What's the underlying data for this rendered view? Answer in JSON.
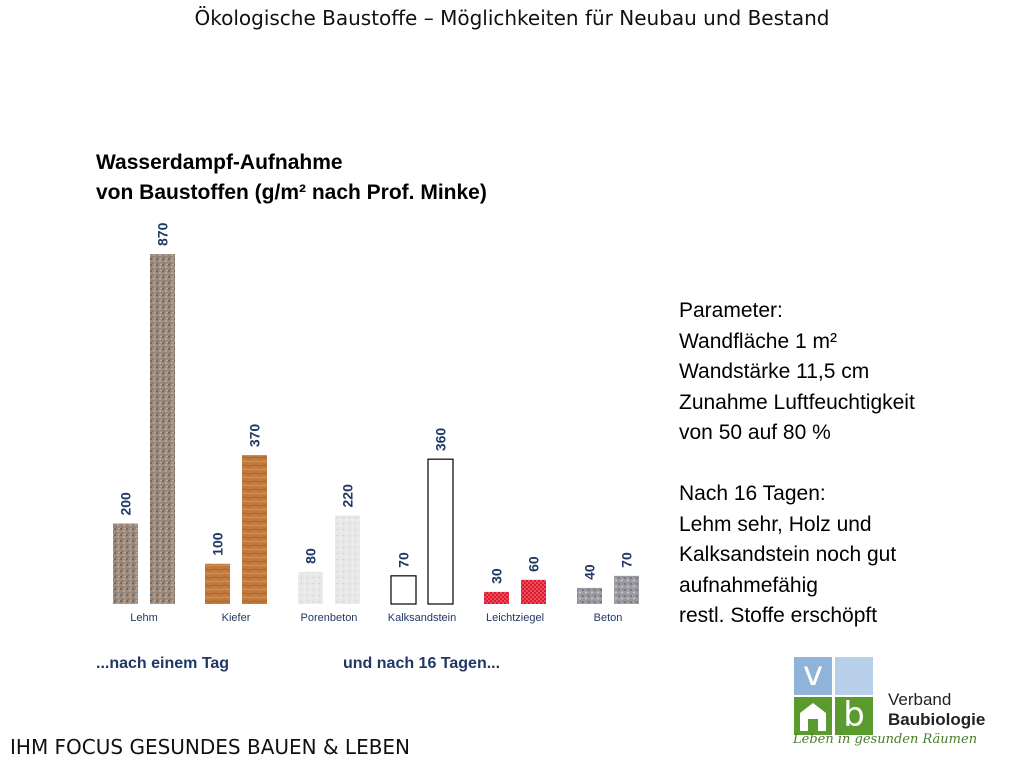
{
  "slide_title": "Ökologische Baustoffe – Möglichkeiten für Neubau und Bestand",
  "chart_data": {
    "type": "bar",
    "title_lines": [
      "Wasserdampf-Aufnahme",
      "von Baustoffen (g/m² nach Prof. Minke)"
    ],
    "categories": [
      "Lehm",
      "Kiefer",
      "Porenbeton",
      "Kalksandstein",
      "Leichtziegel",
      "Beton"
    ],
    "series": [
      {
        "values": [
          200,
          100,
          80,
          70,
          30,
          40
        ]
      },
      {
        "values": [
          870,
          370,
          220,
          360,
          60,
          70
        ]
      }
    ],
    "ylim": [
      0,
      870
    ],
    "grid": false
  },
  "captions": {
    "left": "...nach einem Tag",
    "right": "und nach 16 Tagen..."
  },
  "params_lines": [
    "Parameter:",
    "Wandfläche 1 m²",
    "Wandstärke 11,5 cm",
    "Zunahme Luftfeuchtigkeit",
    "von 50 auf 80 %",
    "",
    "Nach 16 Tagen:",
    "Lehm sehr, Holz und",
    "Kalksandstein noch gut",
    "aufnahmefähig",
    "restl. Stoffe erschöpft"
  ],
  "footer": "IHM FOCUS GESUNDES BAUEN & LEBEN",
  "logo": {
    "letter_v": "v",
    "letter_b": "b",
    "name_line1": "Verband",
    "name_line2": "Baubiologie",
    "tagline": "Leben in gesunden Räumen",
    "colors": {
      "blue": "#8fb3d9",
      "green": "#5a9b2f",
      "gray": "#9a9a9a"
    }
  },
  "colors": {
    "value_label": "#1f3864",
    "category_label": "#1f3864",
    "Lehm": "#9c8a7c",
    "Kiefer": "#c07a3e",
    "Porenbeton": "#e6e6e6",
    "Kalksandstein": "#ffffff",
    "Leichtziegel": "#e0182c",
    "Beton": "#9c9ca2"
  }
}
